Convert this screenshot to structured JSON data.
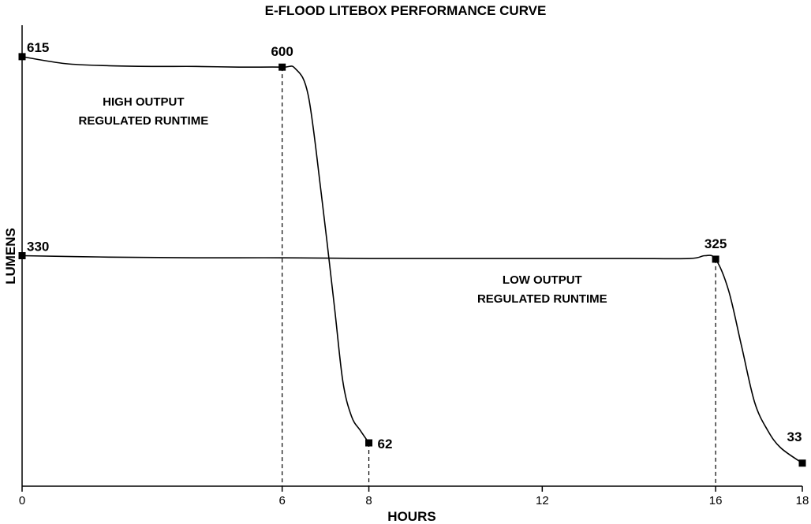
{
  "chart_data": {
    "type": "line",
    "title": "E-FLOOD LITEBOX PERFORMANCE CURVE",
    "xlabel": "HOURS",
    "ylabel": "LUMENS",
    "x_ticks": [
      0,
      6,
      8,
      12,
      16,
      18
    ],
    "xlim": [
      0,
      18
    ],
    "ylim": [
      0,
      660
    ],
    "grid": false,
    "legend": "none",
    "line_color": "#000000",
    "series": [
      {
        "name": "HIGH OUTPUT",
        "x": [
          0,
          1,
          2,
          3,
          4,
          5,
          6,
          6.3,
          6.6,
          6.9,
          7.2,
          7.4,
          7.6,
          7.8,
          8
        ],
        "y": [
          615,
          605,
          602,
          601,
          601,
          600,
          600,
          598,
          560,
          420,
          260,
          150,
          100,
          80,
          62
        ],
        "marked_points": [
          {
            "x": 0,
            "y": 615,
            "label": "615"
          },
          {
            "x": 6,
            "y": 600,
            "label": "600"
          },
          {
            "x": 8,
            "y": 62,
            "label": "62"
          }
        ]
      },
      {
        "name": "LOW OUTPUT",
        "x": [
          0,
          2,
          4,
          6,
          8,
          10,
          12,
          14,
          15.4,
          15.75,
          16,
          16.3,
          16.6,
          16.9,
          17.2,
          17.5,
          18
        ],
        "y": [
          330,
          328,
          327,
          327,
          326,
          326,
          326,
          326,
          326,
          330,
          325,
          280,
          200,
          120,
          80,
          55,
          33
        ],
        "marked_points": [
          {
            "x": 0,
            "y": 330,
            "label": "330"
          },
          {
            "x": 16,
            "y": 325,
            "label": "325"
          },
          {
            "x": 18,
            "y": 33,
            "label": "33"
          }
        ]
      }
    ],
    "reference_lines_x": [
      {
        "x": 6,
        "y": 600
      },
      {
        "x": 8,
        "y": 62
      },
      {
        "x": 16,
        "y": 325
      }
    ],
    "annotations": [
      {
        "lines": [
          "HIGH OUTPUT",
          "REGULATED RUNTIME"
        ],
        "x": 2.8,
        "y": 545
      },
      {
        "lines": [
          "LOW OUTPUT",
          "REGULATED RUNTIME"
        ],
        "x": 12,
        "y": 290
      }
    ]
  }
}
